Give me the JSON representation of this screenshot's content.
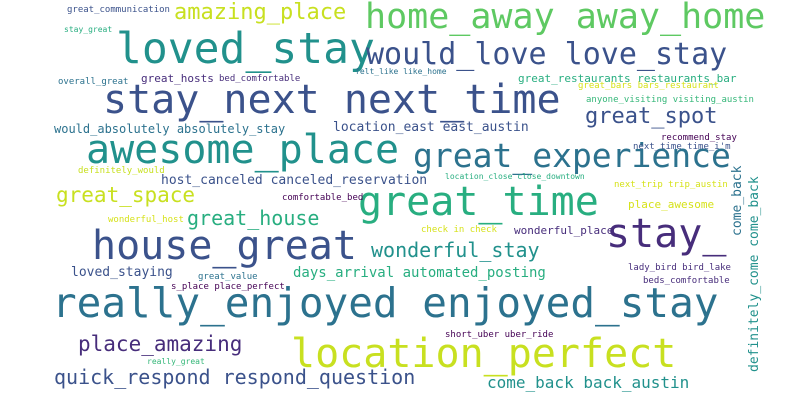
{
  "words": [
    {
      "text": "great_communication"
    },
    {
      "text": "stay_great"
    },
    {
      "text": "amazing_place"
    },
    {
      "text": "home_away away_home"
    },
    {
      "text": "loved_stay"
    },
    {
      "text": "would_love love_stay"
    },
    {
      "text": "overall_great"
    },
    {
      "text": "great_hosts"
    },
    {
      "text": "bed_comfortable"
    },
    {
      "text": "felt_like like_home"
    },
    {
      "text": "great_restaurants restaurants_bar"
    },
    {
      "text": "great_bars bars_restaurant"
    },
    {
      "text": "stay_next next_time"
    },
    {
      "text": "anyone_visiting visiting_austin"
    },
    {
      "text": "great_spot"
    },
    {
      "text": "would_absolutely absolutely_stay"
    },
    {
      "text": "location_east east_austin"
    },
    {
      "text": "recommend_stay"
    },
    {
      "text": "awesome_place"
    },
    {
      "text": "great_experience"
    },
    {
      "text": "next_time time_i'm"
    },
    {
      "text": "definitely_would"
    },
    {
      "text": "host_canceled canceled_reservation"
    },
    {
      "text": "location_close close_downtown"
    },
    {
      "text": "next_trip trip_austin"
    },
    {
      "text": "great_space"
    },
    {
      "text": "great_time"
    },
    {
      "text": "comfortable_bed"
    },
    {
      "text": "place_awesome"
    },
    {
      "text": "come_back"
    },
    {
      "text": "great_house"
    },
    {
      "text": "wonderful_host"
    },
    {
      "text": "check in check"
    },
    {
      "text": "wonderful_place"
    },
    {
      "text": "stay_"
    },
    {
      "text": "house_great"
    },
    {
      "text": "wonderful_stay"
    },
    {
      "text": "loved_staying"
    },
    {
      "text": "days_arrival automated_posting"
    },
    {
      "text": "lady_bird bird_lake"
    },
    {
      "text": "great_value"
    },
    {
      "text": "beds_comfortable"
    },
    {
      "text": "s_place place_perfect"
    },
    {
      "text": "definitely_come come_back"
    },
    {
      "text": "really_enjoyed enjoyed_stay"
    },
    {
      "text": "short_uber uber_ride"
    },
    {
      "text": "place_amazing"
    },
    {
      "text": "location_perfect"
    },
    {
      "text": "really_great"
    },
    {
      "text": "quick_respond respond_question"
    },
    {
      "text": "come_back back_austin"
    }
  ]
}
